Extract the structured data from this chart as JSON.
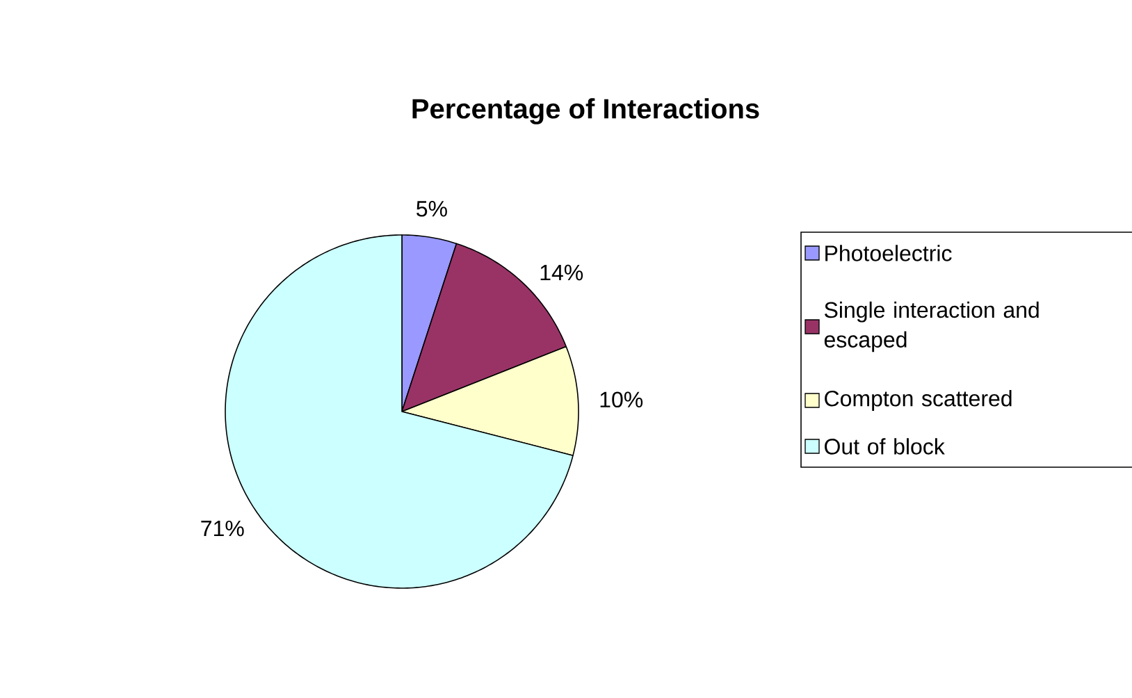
{
  "chart_data": {
    "type": "pie",
    "title": "Percentage of Interactions",
    "categories": [
      "Photoelectric",
      "Single interaction and escaped",
      "Compton scattered",
      "Out of block"
    ],
    "values": [
      5,
      14,
      10,
      71
    ],
    "value_labels": [
      "5%",
      "14%",
      "10%",
      "71%"
    ],
    "colors": [
      "#9999ff",
      "#993366",
      "#ffffcc",
      "#ccffff"
    ],
    "legend": "right"
  }
}
